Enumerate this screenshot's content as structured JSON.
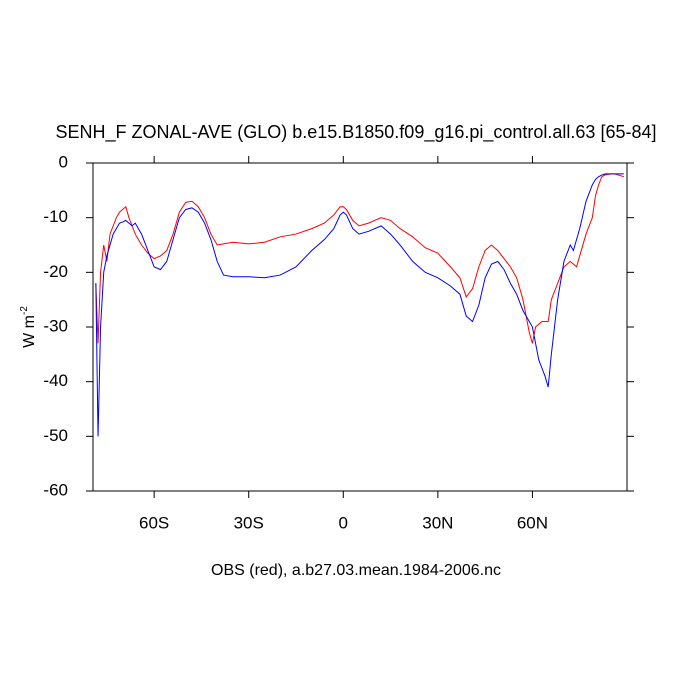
{
  "chart_data": {
    "type": "line",
    "title": "SENH_F ZONAL-AVE (GLO) b.e15.B1850.f09_g16.pi_control.all.63 [65-84]",
    "xlabel": "OBS (red), a.b27.03.mean.1984-2006.nc",
    "ylabel": "W m",
    "ylabel_superscript": "-2",
    "x": [
      -78.5,
      -77.8,
      -77,
      -76,
      -75,
      -74,
      -73,
      -72,
      -71,
      -70,
      -69,
      -68,
      -67,
      -66,
      -64,
      -62,
      -60,
      -58,
      -56,
      -54,
      -52,
      -50,
      -48,
      -46,
      -44,
      -42,
      -40,
      -38,
      -35,
      -30,
      -25,
      -20,
      -15,
      -10,
      -6,
      -3,
      -1,
      0,
      1,
      3,
      5,
      8,
      12,
      15,
      18,
      22,
      26,
      30,
      34,
      37,
      39,
      41,
      43,
      45,
      47,
      49,
      51,
      53,
      55,
      57,
      59,
      60,
      61,
      62,
      63,
      64,
      65,
      66,
      68,
      70,
      72,
      73,
      74,
      75,
      77,
      79,
      80,
      81,
      82,
      83,
      85,
      86,
      89
    ],
    "series": [
      {
        "color": "#0000ff",
        "values": [
          -22,
          -50,
          -30,
          -20,
          -17,
          -15,
          -13,
          -12,
          -11,
          -10.8,
          -10.5,
          -11,
          -11.5,
          -11,
          -13,
          -16,
          -19,
          -19.5,
          -18,
          -14,
          -10,
          -8.5,
          -8.2,
          -9,
          -11,
          -14,
          -18,
          -20.5,
          -20.8,
          -20.8,
          -21,
          -20.5,
          -19,
          -16,
          -14,
          -12,
          -9.5,
          -9,
          -9.5,
          -12,
          -13,
          -12.5,
          -11.5,
          -13,
          -15,
          -18,
          -20,
          -21,
          -22.5,
          -24,
          -28,
          -29,
          -26,
          -21,
          -18.5,
          -18,
          -19.5,
          -22,
          -24,
          -27,
          -29,
          -30,
          -33,
          -36,
          -37.5,
          -39,
          -41,
          -35,
          -25,
          -18,
          -15,
          -16,
          -14,
          -12,
          -7,
          -4,
          -3,
          -2.5,
          -2.2,
          -2,
          -2,
          -2,
          -2
        ]
      },
      {
        "color": "#ff0000",
        "values": [
          -22,
          -33,
          -20,
          -15,
          -18,
          -13,
          -11.5,
          -10,
          -9,
          -8.5,
          -8,
          -10,
          -11.5,
          -13,
          -15,
          -16.5,
          -17.5,
          -17,
          -16,
          -13,
          -9,
          -7.2,
          -7,
          -8,
          -10,
          -13,
          -15,
          -14.8,
          -14.5,
          -14.8,
          -14.5,
          -13.5,
          -13,
          -12,
          -11,
          -9.5,
          -8,
          -8,
          -8.5,
          -10.5,
          -11.5,
          -11,
          -10,
          -10.5,
          -12,
          -13.5,
          -15.5,
          -16.5,
          -19,
          -21,
          -24.5,
          -23,
          -19,
          -16,
          -15,
          -16,
          -17.5,
          -19,
          -21,
          -25,
          -31,
          -33,
          -30,
          -29.5,
          -29,
          -29,
          -29,
          -25,
          -22,
          -19,
          -18,
          -18.5,
          -19,
          -17,
          -13,
          -10,
          -6,
          -4,
          -2.5,
          -2.2,
          -2,
          -2,
          -2.5
        ]
      }
    ],
    "xlim": [
      -79.4,
      90
    ],
    "ylim": [
      -60,
      0
    ],
    "xticks": [
      {
        "value": -60,
        "label": "60S"
      },
      {
        "value": -30,
        "label": "30S"
      },
      0,
      {
        "value": 30,
        "label": "30N"
      },
      {
        "value": 60,
        "label": "60N"
      }
    ],
    "yticks": [
      0,
      -10,
      -20,
      -30,
      -40,
      -50,
      -60
    ]
  }
}
